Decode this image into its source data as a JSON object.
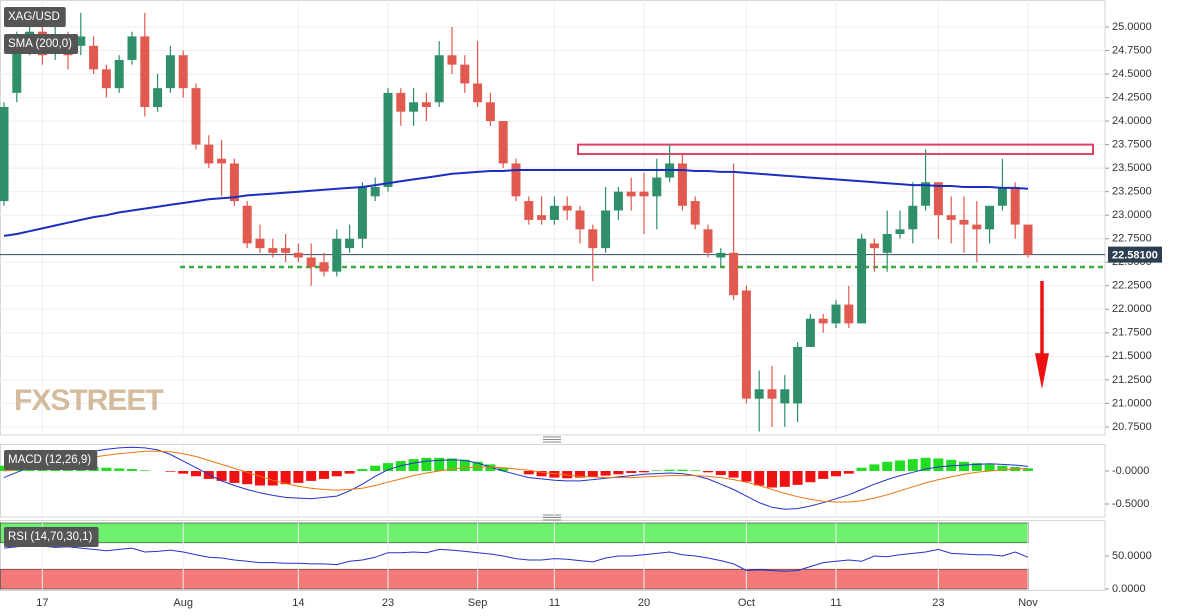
{
  "chart_data": [
    {
      "type": "candlestick",
      "title": "XAG/USD",
      "watermark": "FXSTREET",
      "categories": [
        null,
        null,
        null,
        "17",
        null,
        null,
        null,
        null,
        null,
        null,
        null,
        null,
        null,
        null,
        "Aug",
        null,
        null,
        null,
        null,
        null,
        null,
        null,
        null,
        "14",
        null,
        null,
        null,
        null,
        null,
        null,
        "23",
        null,
        null,
        null,
        null,
        null,
        null,
        "Sep",
        null,
        null,
        null,
        null,
        null,
        "11",
        null,
        null,
        null,
        null,
        null,
        null,
        "20",
        null,
        null,
        null,
        null,
        null,
        null,
        null,
        "Oct",
        null,
        null,
        null,
        null,
        null,
        null,
        "11",
        null,
        null,
        null,
        null,
        null,
        null,
        null,
        "23",
        null,
        null,
        null,
        null,
        null,
        null,
        "Nov"
      ],
      "open": [
        23.15,
        24.3,
        24.85,
        24.95,
        24.75,
        24.85,
        24.8,
        24.8,
        24.55,
        24.35,
        24.65,
        24.9,
        24.15,
        24.35,
        24.7,
        24.35,
        23.75,
        23.6,
        23.55,
        23.1,
        22.75,
        22.65,
        22.65,
        22.6,
        22.55,
        22.5,
        22.4,
        22.65,
        22.75,
        23.2,
        23.3,
        24.3,
        24.1,
        24.2,
        24.2,
        24.7,
        24.6,
        24.4,
        24.2,
        24.0,
        23.55,
        23.15,
        23.0,
        22.95,
        23.1,
        23.05,
        22.85,
        22.65,
        23.05,
        23.25,
        23.25,
        23.2,
        23.4,
        23.55,
        23.15,
        22.85,
        22.55,
        22.6,
        22.2,
        21.05,
        21.15,
        21.0,
        21.0,
        21.6,
        21.9,
        21.85,
        22.05,
        21.85,
        22.7,
        22.6,
        22.8,
        22.85,
        23.1,
        23.35,
        23.0,
        22.95,
        22.9,
        22.85,
        23.1,
        23.3,
        22.9
      ],
      "high": [
        24.2,
        24.95,
        25.1,
        25.1,
        25.0,
        24.95,
        25.15,
        24.9,
        24.6,
        24.7,
        24.95,
        25.15,
        24.5,
        24.8,
        24.75,
        24.4,
        23.85,
        23.8,
        23.6,
        23.15,
        22.9,
        22.75,
        22.8,
        22.7,
        22.7,
        22.6,
        22.85,
        22.9,
        23.35,
        23.4,
        24.35,
        24.35,
        24.35,
        24.3,
        24.85,
        25.0,
        24.7,
        24.85,
        24.3,
        24.0,
        23.6,
        23.2,
        23.2,
        23.2,
        23.2,
        23.1,
        22.9,
        23.3,
        23.3,
        23.4,
        23.45,
        23.6,
        23.75,
        23.65,
        23.2,
        22.9,
        22.65,
        23.55,
        22.25,
        21.35,
        21.4,
        21.3,
        21.65,
        21.95,
        21.95,
        22.1,
        22.25,
        22.8,
        22.75,
        23.05,
        23.05,
        23.35,
        23.7,
        23.35,
        23.2,
        23.2,
        23.15,
        23.1,
        23.6,
        23.35,
        22.9
      ],
      "low": [
        23.1,
        24.2,
        24.7,
        24.6,
        24.65,
        24.55,
        24.7,
        24.5,
        24.25,
        24.3,
        24.6,
        24.05,
        24.1,
        24.3,
        24.25,
        23.7,
        23.5,
        23.2,
        23.1,
        22.65,
        22.6,
        22.55,
        22.5,
        22.5,
        22.25,
        22.35,
        22.35,
        22.6,
        22.65,
        23.15,
        23.25,
        23.95,
        23.95,
        24.0,
        24.15,
        24.5,
        24.3,
        24.15,
        23.95,
        23.5,
        23.15,
        22.9,
        22.9,
        22.9,
        22.95,
        22.7,
        22.3,
        22.6,
        22.95,
        23.05,
        22.8,
        22.85,
        23.35,
        23.05,
        22.85,
        22.55,
        22.45,
        22.1,
        21.0,
        20.7,
        20.75,
        20.75,
        20.8,
        21.6,
        21.75,
        21.8,
        21.8,
        21.85,
        22.4,
        22.4,
        22.75,
        22.7,
        23.05,
        22.75,
        22.7,
        22.6,
        22.5,
        22.7,
        23.05,
        22.75,
        22.55
      ],
      "close": [
        24.15,
        24.85,
        24.95,
        24.7,
        24.85,
        24.7,
        24.9,
        24.55,
        24.35,
        24.65,
        24.9,
        24.15,
        24.35,
        24.7,
        24.35,
        23.75,
        23.55,
        23.55,
        23.15,
        22.7,
        22.65,
        22.6,
        22.6,
        22.55,
        22.45,
        22.4,
        22.75,
        22.75,
        23.3,
        23.3,
        24.3,
        24.1,
        24.2,
        24.15,
        24.7,
        24.6,
        24.4,
        24.2,
        24.0,
        23.55,
        23.2,
        22.95,
        22.95,
        23.1,
        23.05,
        22.85,
        22.65,
        23.05,
        23.25,
        23.2,
        23.2,
        23.4,
        23.55,
        23.1,
        22.9,
        22.6,
        22.6,
        22.15,
        21.05,
        21.15,
        21.05,
        21.15,
        21.6,
        21.9,
        21.85,
        22.05,
        21.85,
        22.75,
        22.65,
        22.8,
        22.85,
        23.1,
        23.35,
        23.0,
        22.95,
        22.9,
        22.85,
        23.1,
        23.3,
        22.9,
        22.581
      ],
      "up_color": "#2f8f68",
      "down_color": "#e05a50",
      "series": [
        {
          "name": "SMA (200,0)",
          "color": "#1a2fc0",
          "values": [
            22.78,
            22.8,
            22.83,
            22.86,
            22.89,
            22.92,
            22.95,
            22.98,
            23.0,
            23.03,
            23.05,
            23.07,
            23.09,
            23.11,
            23.13,
            23.15,
            23.17,
            23.18,
            23.19,
            23.21,
            23.22,
            23.23,
            23.24,
            23.25,
            23.26,
            23.27,
            23.28,
            23.29,
            23.3,
            23.32,
            23.34,
            23.36,
            23.38,
            23.4,
            23.42,
            23.44,
            23.45,
            23.46,
            23.47,
            23.47,
            23.48,
            23.48,
            23.48,
            23.48,
            23.48,
            23.48,
            23.48,
            23.48,
            23.48,
            23.48,
            23.48,
            23.48,
            23.48,
            23.48,
            23.47,
            23.47,
            23.46,
            23.46,
            23.45,
            23.44,
            23.43,
            23.42,
            23.41,
            23.4,
            23.39,
            23.38,
            23.37,
            23.36,
            23.35,
            23.34,
            23.33,
            23.32,
            23.32,
            23.31,
            23.31,
            23.3,
            23.3,
            23.3,
            23.29,
            23.29,
            23.28
          ]
        }
      ],
      "ylim": [
        20.664,
        25.287
      ],
      "yticks": [
        {
          "value": 20.75,
          "label": "20.7500"
        },
        {
          "value": 21.0,
          "label": "21.0000"
        },
        {
          "value": 21.25,
          "label": "21.2500"
        },
        {
          "value": 21.5,
          "label": "21.5000"
        },
        {
          "value": 21.75,
          "label": "21.7500"
        },
        {
          "value": 22.0,
          "label": "22.0000"
        },
        {
          "value": 22.25,
          "label": "22.2500"
        },
        {
          "value": 22.5,
          "label": "22.5000"
        },
        {
          "value": 22.75,
          "label": "22.7500"
        },
        {
          "value": 23.0,
          "label": "23.0000"
        },
        {
          "value": 23.25,
          "label": "23.2500"
        },
        {
          "value": 23.5,
          "label": "23.5000"
        },
        {
          "value": 23.75,
          "label": "23.7500"
        },
        {
          "value": 24.0,
          "label": "24.0000"
        },
        {
          "value": 24.25,
          "label": "24.2500"
        },
        {
          "value": 24.5,
          "label": "24.5000"
        },
        {
          "value": 24.75,
          "label": "24.7500"
        },
        {
          "value": 25.0,
          "label": "25.0000"
        }
      ],
      "grid": true,
      "price_label": {
        "value": 22.581,
        "label": "22.58100"
      },
      "support": {
        "value": 22.45,
        "color": "#3aaa3a"
      },
      "resistance_zone": {
        "low": 23.65,
        "high": 23.75,
        "color": "#e0406a"
      },
      "arrow": {
        "from": 22.3,
        "to": 21.15,
        "color": "#ee1111"
      }
    },
    {
      "type": "macd",
      "title": "MACD (12,26,9)",
      "histogram": [
        0.08,
        0.1,
        0.1,
        0.09,
        0.08,
        0.07,
        0.06,
        0.06,
        0.05,
        0.04,
        0.03,
        0.01,
        0.0,
        -0.01,
        -0.04,
        -0.08,
        -0.12,
        -0.15,
        -0.18,
        -0.2,
        -0.22,
        -0.22,
        -0.2,
        -0.18,
        -0.15,
        -0.12,
        -0.08,
        -0.04,
        0.03,
        0.08,
        0.12,
        0.15,
        0.18,
        0.2,
        0.2,
        0.19,
        0.17,
        0.14,
        0.1,
        0.05,
        0.0,
        -0.05,
        -0.08,
        -0.1,
        -0.11,
        -0.1,
        -0.09,
        -0.07,
        -0.05,
        -0.03,
        -0.02,
        0.01,
        0.02,
        0.02,
        0.01,
        -0.02,
        -0.06,
        -0.1,
        -0.16,
        -0.22,
        -0.25,
        -0.24,
        -0.21,
        -0.17,
        -0.12,
        -0.08,
        -0.04,
        0.05,
        0.1,
        0.14,
        0.16,
        0.18,
        0.2,
        0.19,
        0.17,
        0.14,
        0.12,
        0.1,
        0.08,
        0.06,
        0.04
      ],
      "up_color": "#22dd22",
      "down_color": "#ee1111",
      "series": [
        {
          "color": "#2233cc",
          "values": [
            -0.1,
            -0.02,
            0.05,
            0.12,
            0.18,
            0.22,
            0.26,
            0.3,
            0.33,
            0.35,
            0.36,
            0.35,
            0.32,
            0.25,
            0.15,
            0.05,
            -0.05,
            -0.15,
            -0.22,
            -0.28,
            -0.33,
            -0.37,
            -0.4,
            -0.41,
            -0.42,
            -0.4,
            -0.38,
            -0.3,
            -0.2,
            -0.08,
            0.02,
            0.08,
            0.12,
            0.15,
            0.16,
            0.17,
            0.16,
            0.12,
            0.06,
            0.0,
            -0.05,
            -0.1,
            -0.12,
            -0.14,
            -0.15,
            -0.15,
            -0.13,
            -0.11,
            -0.09,
            -0.07,
            -0.05,
            -0.04,
            -0.03,
            -0.04,
            -0.07,
            -0.12,
            -0.2,
            -0.28,
            -0.38,
            -0.48,
            -0.55,
            -0.58,
            -0.57,
            -0.53,
            -0.48,
            -0.42,
            -0.36,
            -0.28,
            -0.2,
            -0.13,
            -0.07,
            -0.02,
            0.03,
            0.06,
            0.08,
            0.09,
            0.1,
            0.11,
            0.1,
            0.09,
            0.07
          ]
        },
        {
          "color": "#ee7711",
          "values": [
            0.0,
            0.02,
            0.05,
            0.08,
            0.12,
            0.15,
            0.18,
            0.21,
            0.24,
            0.26,
            0.28,
            0.3,
            0.3,
            0.29,
            0.26,
            0.22,
            0.16,
            0.1,
            0.04,
            -0.02,
            -0.08,
            -0.14,
            -0.19,
            -0.23,
            -0.26,
            -0.28,
            -0.29,
            -0.28,
            -0.26,
            -0.22,
            -0.17,
            -0.12,
            -0.07,
            -0.03,
            0.0,
            0.03,
            0.05,
            0.06,
            0.06,
            0.05,
            0.03,
            0.01,
            -0.02,
            -0.04,
            -0.06,
            -0.08,
            -0.09,
            -0.1,
            -0.1,
            -0.1,
            -0.09,
            -0.08,
            -0.07,
            -0.07,
            -0.07,
            -0.08,
            -0.1,
            -0.13,
            -0.17,
            -0.22,
            -0.28,
            -0.34,
            -0.39,
            -0.43,
            -0.46,
            -0.47,
            -0.47,
            -0.45,
            -0.41,
            -0.36,
            -0.3,
            -0.24,
            -0.18,
            -0.13,
            -0.09,
            -0.05,
            -0.02,
            0.0,
            0.02,
            0.03,
            0.04
          ]
        }
      ],
      "ylim": [
        -0.697,
        0.394
      ],
      "yticks": [
        {
          "value": 0,
          "label": "-0.0000"
        },
        {
          "value": -0.5,
          "label": "-0.5000"
        }
      ]
    },
    {
      "type": "rsi",
      "title": "RSI (14,70,30,1)",
      "series": [
        {
          "color": "#2233cc",
          "values": [
            62,
            64,
            66,
            65,
            63,
            64,
            62,
            60,
            58,
            60,
            62,
            56,
            57,
            59,
            56,
            52,
            48,
            47,
            44,
            42,
            40,
            40,
            39,
            39,
            38,
            38,
            37,
            42,
            44,
            48,
            55,
            55,
            56,
            55,
            60,
            59,
            57,
            55,
            53,
            50,
            46,
            44,
            44,
            46,
            45,
            43,
            41,
            47,
            50,
            50,
            52,
            54,
            56,
            52,
            50,
            47,
            43,
            38,
            28,
            29,
            28,
            27,
            28,
            34,
            40,
            42,
            44,
            42,
            50,
            49,
            52,
            54,
            56,
            60,
            54,
            53,
            52,
            52,
            50,
            56,
            48
          ]
        }
      ],
      "zones": [
        {
          "from": 70,
          "to": 100,
          "color": "#6ef06e"
        },
        {
          "from": 0,
          "to": 30,
          "color": "#f47a7a"
        }
      ],
      "ylim": [
        0,
        100
      ],
      "yticks": [
        {
          "value": 0,
          "label": "0.0000"
        },
        {
          "value": 50,
          "label": "50.0000"
        }
      ]
    }
  ]
}
